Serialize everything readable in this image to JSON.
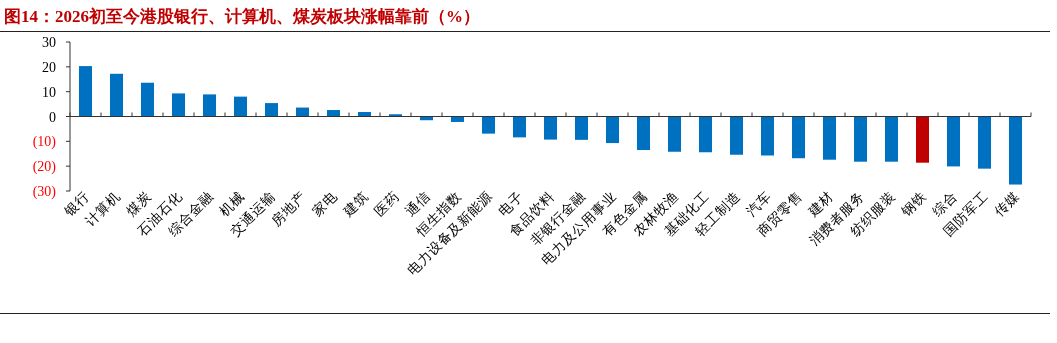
{
  "chart_data": {
    "type": "bar",
    "title": "图14：2026初至今港股银行、计算机、煤炭板块涨幅靠前（%）",
    "categories": [
      "银行",
      "计算机",
      "煤炭",
      "石油石化",
      "综合金融",
      "机械",
      "交通运输",
      "房地产",
      "家电",
      "建筑",
      "医药",
      "通信",
      "恒生指数",
      "电力设备及新能源",
      "电子",
      "食品饮料",
      "非银行金融",
      "电力及公用事业",
      "有色金属",
      "农林牧渔",
      "基础化工",
      "轻工制造",
      "汽车",
      "商贸零售",
      "建材",
      "消费者服务",
      "纺织服装",
      "钢铁",
      "综合",
      "国防军工",
      "传媒"
    ],
    "values": [
      20.3,
      17.2,
      13.6,
      9.3,
      8.9,
      8.0,
      5.4,
      3.6,
      2.6,
      1.8,
      0.9,
      -1.5,
      -2.2,
      -6.9,
      -8.4,
      -9.3,
      -9.4,
      -10.7,
      -13.5,
      -14.2,
      -14.4,
      -15.4,
      -15.7,
      -16.8,
      -17.4,
      -18.2,
      -18.2,
      -18.6,
      -20.1,
      -21.0,
      -27.4
    ],
    "colors": [
      "#0070c0",
      "#0070c0",
      "#0070c0",
      "#0070c0",
      "#0070c0",
      "#0070c0",
      "#0070c0",
      "#0070c0",
      "#0070c0",
      "#0070c0",
      "#0070c0",
      "#0070c0",
      "#0070c0",
      "#0070c0",
      "#0070c0",
      "#0070c0",
      "#0070c0",
      "#0070c0",
      "#0070c0",
      "#0070c0",
      "#0070c0",
      "#0070c0",
      "#0070c0",
      "#0070c0",
      "#0070c0",
      "#0070c0",
      "#0070c0",
      "#c00000",
      "#0070c0",
      "#0070c0",
      "#0070c0"
    ],
    "ylim": [
      -30,
      30
    ],
    "yticks": [
      30,
      20,
      10,
      0,
      {
        "value": -10,
        "label": "(10)"
      },
      {
        "value": -20,
        "label": "(20)"
      },
      {
        "value": -30,
        "label": "(30)"
      }
    ]
  }
}
